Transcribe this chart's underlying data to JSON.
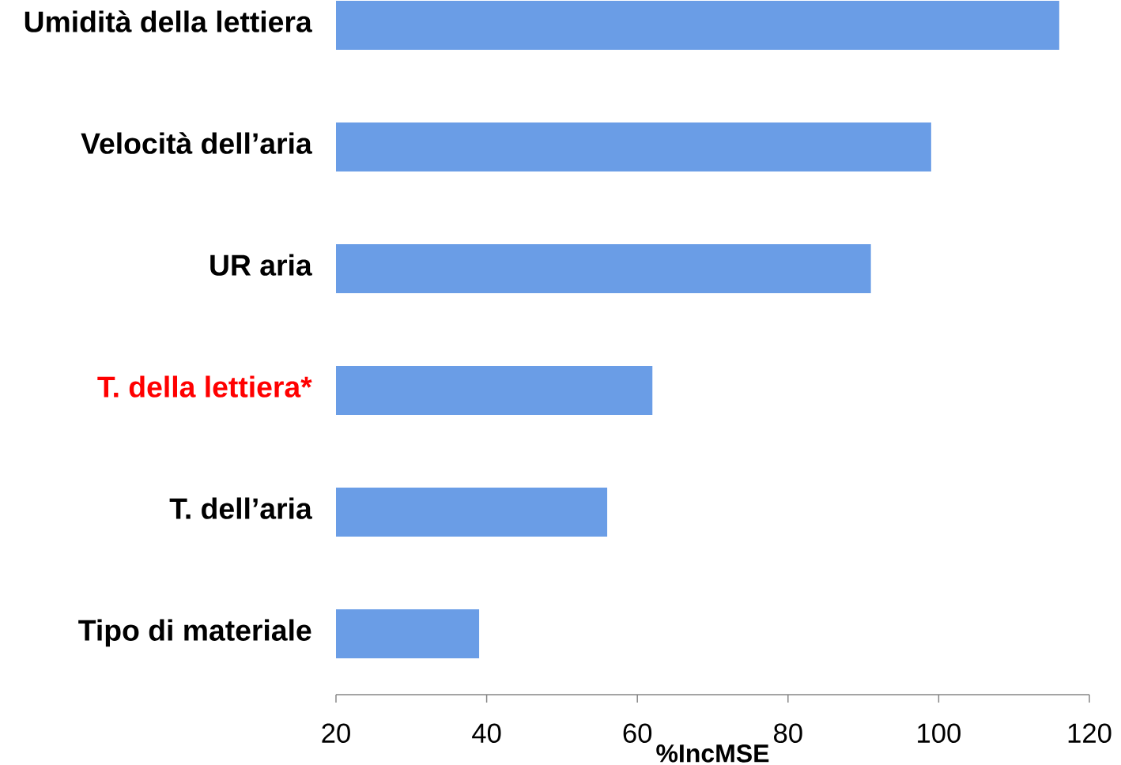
{
  "chart_data": {
    "type": "bar",
    "orientation": "horizontal",
    "xlabel": "%IncMSE",
    "categories": [
      "Umidità della lettiera",
      "Velocità dell’aria",
      "UR aria",
      "T. della lettiera*",
      "T. dell’aria",
      "Tipo di materiale"
    ],
    "values": [
      116,
      99,
      91,
      62,
      56,
      39
    ],
    "color": "#6a9de6",
    "xlim": [
      20,
      120
    ],
    "xticks": [
      20,
      40,
      60,
      80,
      100,
      120
    ]
  }
}
